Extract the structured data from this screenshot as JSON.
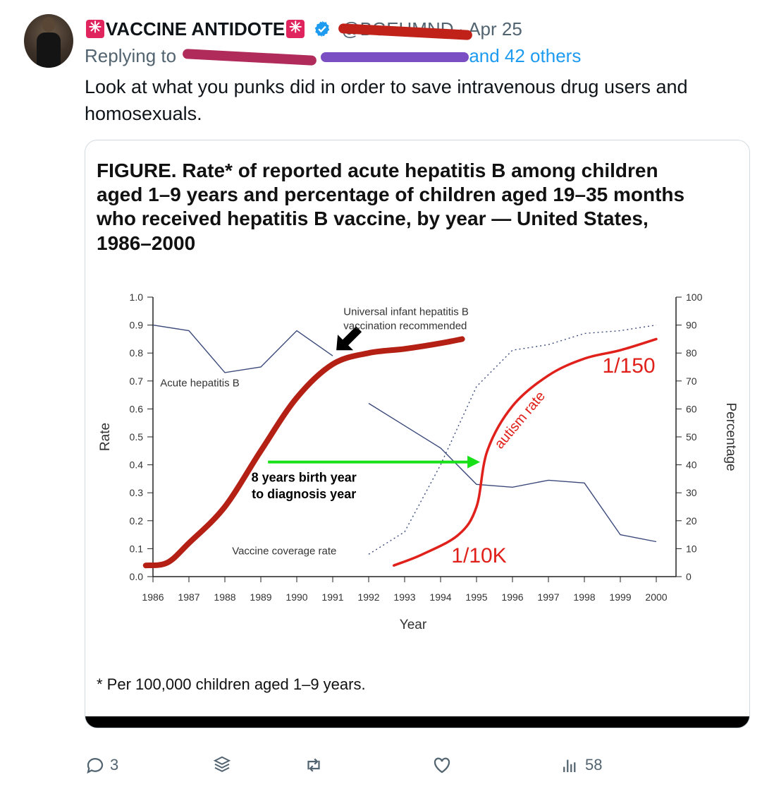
{
  "tweet": {
    "display_name": "VACCINE ANTIDOTE",
    "handle": "@BGEHMND",
    "date": "Apr 25",
    "replying_prefix": "Replying to",
    "replying_suffix": "and 42 others",
    "text": "Look at what you punks did in order to save intravenous drug users and homosexuals."
  },
  "figure": {
    "title_lines": [
      "FIGURE. Rate* of reported acute hepatitis B among children",
      "aged 1–9 years and percentage of children aged 19–35 months",
      "who received hepatitis B vaccine, by year — United States,",
      "1986–2000"
    ],
    "footnote": "* Per 100,000 children aged 1–9 years.",
    "annotations": {
      "acute_label": "Acute hepatitis B",
      "universal_line1": "Universal infant hepatitis B",
      "universal_line2": "vaccination recommended",
      "coverage_label": "Vaccine coverage rate",
      "green_line1": "8 years birth year",
      "green_line2": "to diagnosis year",
      "autism_label": "autism rate",
      "ratio_high": "1/150",
      "ratio_low": "1/10K"
    }
  },
  "chart_data": {
    "type": "line",
    "xlabel": "Year",
    "ylabel": "Rate",
    "y2label": "Percentage",
    "x": [
      1986,
      1987,
      1988,
      1989,
      1990,
      1991,
      1992,
      1993,
      1994,
      1995,
      1996,
      1997,
      1998,
      1999,
      2000
    ],
    "ylim": [
      0,
      1.0
    ],
    "y2lim": [
      0,
      100
    ],
    "yticks": [
      "0.0",
      "0.1",
      "0.2",
      "0.3",
      "0.4",
      "0.5",
      "0.6",
      "0.7",
      "0.8",
      "0.9",
      "1.0"
    ],
    "y2ticks": [
      "0",
      "10",
      "20",
      "30",
      "40",
      "50",
      "60",
      "70",
      "80",
      "90",
      "100"
    ],
    "series": [
      {
        "name": "Acute hepatitis B",
        "axis": "left",
        "style": "solid",
        "color": "#3b4a7a",
        "points": [
          [
            1986,
            0.9
          ],
          [
            1987,
            0.88
          ],
          [
            1988,
            0.73
          ],
          [
            1989,
            0.75
          ],
          [
            1990,
            0.88
          ],
          [
            1991,
            0.79
          ],
          [
            null,
            null
          ],
          [
            1992,
            0.62
          ],
          [
            1993,
            0.54
          ],
          [
            1994,
            0.46
          ],
          [
            1995,
            0.33
          ],
          [
            1996,
            0.32
          ],
          [
            1997,
            0.345
          ],
          [
            1998,
            0.335
          ],
          [
            1999,
            0.15
          ],
          [
            2000,
            0.125
          ]
        ]
      },
      {
        "name": "Vaccine coverage rate",
        "axis": "right",
        "style": "dotted",
        "color": "#3b4a7a",
        "points": [
          [
            1992,
            8
          ],
          [
            1993,
            16
          ],
          [
            1994,
            40
          ],
          [
            1995,
            68
          ],
          [
            1996,
            81
          ],
          [
            1997,
            83
          ],
          [
            1998,
            87
          ],
          [
            1999,
            88
          ],
          [
            2000,
            90
          ]
        ]
      }
    ],
    "overlays": [
      {
        "kind": "hand-drawn curve",
        "color": "#b52015",
        "points": [
          [
            1985.8,
            0.04
          ],
          [
            1986.4,
            0.05
          ],
          [
            1987,
            0.12
          ],
          [
            1988,
            0.25
          ],
          [
            1989,
            0.45
          ],
          [
            1990,
            0.64
          ],
          [
            1991,
            0.76
          ],
          [
            1992,
            0.8
          ],
          [
            1993,
            0.815
          ],
          [
            1994,
            0.835
          ],
          [
            1994.6,
            0.85
          ]
        ]
      },
      {
        "kind": "hand-drawn curve",
        "label": "autism rate",
        "color": "#e0201a",
        "points": [
          [
            1992.7,
            0.04
          ],
          [
            1993.5,
            0.08
          ],
          [
            1994.5,
            0.15
          ],
          [
            1995,
            0.25
          ],
          [
            1995.3,
            0.45
          ],
          [
            1996,
            0.61
          ],
          [
            1997,
            0.72
          ],
          [
            1998,
            0.78
          ],
          [
            1999,
            0.81
          ],
          [
            2000,
            0.85
          ]
        ]
      },
      {
        "kind": "arrow",
        "color": "#18e018",
        "from": [
          1989.2,
          0.41
        ],
        "to": [
          1995.1,
          0.41
        ]
      }
    ]
  },
  "actions": {
    "replies": "3",
    "views": "58"
  },
  "colors": {
    "link": "#1d9bf0",
    "muted": "#536471",
    "verified": "#1d9bf0"
  }
}
